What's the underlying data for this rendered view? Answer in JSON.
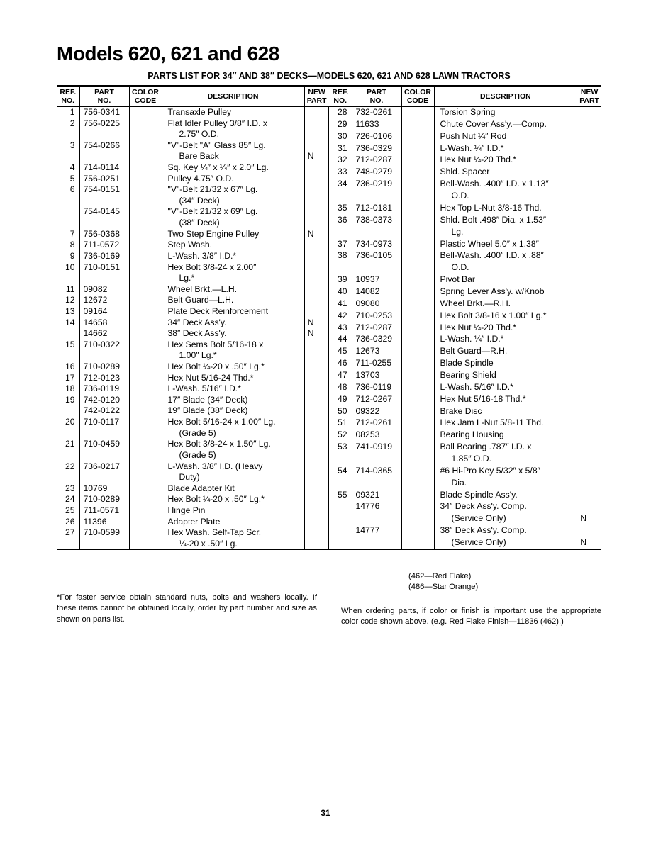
{
  "title": "Models 620, 621 and 628",
  "subtitle": "PARTS LIST FOR 34″ AND 38″ DECKS—MODELS 620, 621 AND 628 LAWN TRACTORS",
  "headers": {
    "ref": "REF.\nNO.",
    "part": "PART\nNO.",
    "color": "COLOR\nCODE",
    "desc": "DESCRIPTION",
    "new": "NEW\nPART"
  },
  "leftRows": [
    {
      "ref": "1",
      "part": "756-0341",
      "color": "",
      "desc": "Transaxle Pulley",
      "new": ""
    },
    {
      "ref": "2",
      "part": "756-0225",
      "color": "",
      "desc": "Flat Idler Pulley 3/8″ I.D. x",
      "new": ""
    },
    {
      "ref": "",
      "part": "",
      "color": "",
      "desc": "  2.75″ O.D.",
      "new": ""
    },
    {
      "ref": "3",
      "part": "754-0266",
      "color": "",
      "desc": "\"V\"-Belt \"A\" Glass 85″ Lg.",
      "new": ""
    },
    {
      "ref": "",
      "part": "",
      "color": "",
      "desc": "  Bare Back",
      "new": "N"
    },
    {
      "ref": "4",
      "part": "714-0114",
      "color": "",
      "desc": "Sq. Key ¼″ x ¼″ x 2.0″ Lg.",
      "new": ""
    },
    {
      "ref": "5",
      "part": "756-0251",
      "color": "",
      "desc": "Pulley 4.75″ O.D.",
      "new": ""
    },
    {
      "ref": "6",
      "part": "754-0151",
      "color": "",
      "desc": "\"V\"-Belt 21/32 x 67″ Lg.",
      "new": ""
    },
    {
      "ref": "",
      "part": "",
      "color": "",
      "desc": "  (34″ Deck)",
      "new": ""
    },
    {
      "ref": "",
      "part": "754-0145",
      "color": "",
      "desc": "\"V\"-Belt 21/32 x 69″ Lg.",
      "new": ""
    },
    {
      "ref": "",
      "part": "",
      "color": "",
      "desc": "  (38″ Deck)",
      "new": ""
    },
    {
      "ref": "7",
      "part": "756-0368",
      "color": "",
      "desc": "Two Step Engine Pulley",
      "new": "N"
    },
    {
      "ref": "8",
      "part": "711-0572",
      "color": "",
      "desc": "Step Wash.",
      "new": ""
    },
    {
      "ref": "9",
      "part": "736-0169",
      "color": "",
      "desc": "L-Wash. 3/8″ I.D.*",
      "new": ""
    },
    {
      "ref": "10",
      "part": "710-0151",
      "color": "",
      "desc": "Hex Bolt 3/8-24 x 2.00″",
      "new": ""
    },
    {
      "ref": "",
      "part": "",
      "color": "",
      "desc": "  Lg.*",
      "new": ""
    },
    {
      "ref": "11",
      "part": "09082",
      "color": "",
      "desc": "Wheel Brkt.—L.H.",
      "new": ""
    },
    {
      "ref": "12",
      "part": "12672",
      "color": "",
      "desc": "Belt Guard—L.H.",
      "new": ""
    },
    {
      "ref": "13",
      "part": "09164",
      "color": "",
      "desc": "Plate Deck Reinforcement",
      "new": ""
    },
    {
      "ref": "14",
      "part": "14658",
      "color": "",
      "desc": "34″ Deck Ass'y.",
      "new": "N"
    },
    {
      "ref": "",
      "part": "14662",
      "color": "",
      "desc": "38″ Deck Ass'y.",
      "new": "N"
    },
    {
      "ref": "15",
      "part": "710-0322",
      "color": "",
      "desc": "Hex Sems Bolt 5/16-18 x",
      "new": ""
    },
    {
      "ref": "",
      "part": "",
      "color": "",
      "desc": "  1.00″ Lg.*",
      "new": ""
    },
    {
      "ref": "16",
      "part": "710-0289",
      "color": "",
      "desc": "Hex Bolt ¼-20 x .50″ Lg.*",
      "new": ""
    },
    {
      "ref": "17",
      "part": "712-0123",
      "color": "",
      "desc": "Hex Nut 5/16-24 Thd.*",
      "new": ""
    },
    {
      "ref": "18",
      "part": "736-0119",
      "color": "",
      "desc": "L-Wash. 5/16″ I.D.*",
      "new": ""
    },
    {
      "ref": "19",
      "part": "742-0120",
      "color": "",
      "desc": "17″ Blade (34″ Deck)",
      "new": ""
    },
    {
      "ref": "",
      "part": "742-0122",
      "color": "",
      "desc": "19″ Blade (38″ Deck)",
      "new": ""
    },
    {
      "ref": "20",
      "part": "710-0117",
      "color": "",
      "desc": "Hex Bolt 5/16-24 x 1.00″ Lg.",
      "new": ""
    },
    {
      "ref": "",
      "part": "",
      "color": "",
      "desc": "  (Grade 5)",
      "new": ""
    },
    {
      "ref": "21",
      "part": "710-0459",
      "color": "",
      "desc": "Hex Bolt 3/8-24 x 1.50″ Lg.",
      "new": ""
    },
    {
      "ref": "",
      "part": "",
      "color": "",
      "desc": "  (Grade 5)",
      "new": ""
    },
    {
      "ref": "22",
      "part": "736-0217",
      "color": "",
      "desc": "L-Wash. 3/8″ I.D. (Heavy",
      "new": ""
    },
    {
      "ref": "",
      "part": "",
      "color": "",
      "desc": "  Duty)",
      "new": ""
    },
    {
      "ref": "23",
      "part": "10769",
      "color": "",
      "desc": "Blade Adapter Kit",
      "new": ""
    },
    {
      "ref": "24",
      "part": "710-0289",
      "color": "",
      "desc": "Hex Bolt ¼-20 x .50″ Lg.*",
      "new": ""
    },
    {
      "ref": "25",
      "part": "711-0571",
      "color": "",
      "desc": "Hinge Pin",
      "new": ""
    },
    {
      "ref": "26",
      "part": "11396",
      "color": "",
      "desc": "Adapter Plate",
      "new": ""
    },
    {
      "ref": "27",
      "part": "710-0599",
      "color": "",
      "desc": "Hex Wash. Self-Tap Scr.",
      "new": ""
    },
    {
      "ref": "",
      "part": "",
      "color": "",
      "desc": "  ¼-20 x .50″ Lg.",
      "new": ""
    }
  ],
  "rightRows": [
    {
      "ref": "28",
      "part": "732-0261",
      "color": "",
      "desc": "Torsion Spring",
      "new": ""
    },
    {
      "ref": "29",
      "part": "11633",
      "color": "",
      "desc": "Chute Cover Ass'y.—Comp.",
      "new": ""
    },
    {
      "ref": "30",
      "part": "726-0106",
      "color": "",
      "desc": "Push Nut ¼″ Rod",
      "new": ""
    },
    {
      "ref": "31",
      "part": "736-0329",
      "color": "",
      "desc": "L-Wash. ¼″ I.D.*",
      "new": ""
    },
    {
      "ref": "32",
      "part": "712-0287",
      "color": "",
      "desc": "Hex Nut ¼-20 Thd.*",
      "new": ""
    },
    {
      "ref": "33",
      "part": "748-0279",
      "color": "",
      "desc": "Shld. Spacer",
      "new": ""
    },
    {
      "ref": "34",
      "part": "736-0219",
      "color": "",
      "desc": "Bell-Wash. .400″ I.D. x 1.13″",
      "new": ""
    },
    {
      "ref": "",
      "part": "",
      "color": "",
      "desc": "  O.D.",
      "new": ""
    },
    {
      "ref": "35",
      "part": "712-0181",
      "color": "",
      "desc": "Hex Top L-Nut 3/8-16 Thd.",
      "new": ""
    },
    {
      "ref": "36",
      "part": "738-0373",
      "color": "",
      "desc": "Shld. Bolt .498″ Dia. x 1.53″",
      "new": ""
    },
    {
      "ref": "",
      "part": "",
      "color": "",
      "desc": "  Lg.",
      "new": ""
    },
    {
      "ref": "37",
      "part": "734-0973",
      "color": "",
      "desc": "Plastic Wheel 5.0″ x 1.38″",
      "new": ""
    },
    {
      "ref": "38",
      "part": "736-0105",
      "color": "",
      "desc": "Bell-Wash. .400″ I.D. x .88″",
      "new": ""
    },
    {
      "ref": "",
      "part": "",
      "color": "",
      "desc": "  O.D.",
      "new": ""
    },
    {
      "ref": "39",
      "part": "10937",
      "color": "",
      "desc": "Pivot Bar",
      "new": ""
    },
    {
      "ref": "40",
      "part": "14082",
      "color": "",
      "desc": "Spring Lever Ass'y. w/Knob",
      "new": ""
    },
    {
      "ref": "41",
      "part": "09080",
      "color": "",
      "desc": "Wheel Brkt.—R.H.",
      "new": ""
    },
    {
      "ref": "42",
      "part": "710-0253",
      "color": "",
      "desc": "Hex Bolt 3/8-16 x 1.00″ Lg.*",
      "new": ""
    },
    {
      "ref": "43",
      "part": "712-0287",
      "color": "",
      "desc": "Hex Nut ¼-20 Thd.*",
      "new": ""
    },
    {
      "ref": "44",
      "part": "736-0329",
      "color": "",
      "desc": "L-Wash. ¼″ I.D.*",
      "new": ""
    },
    {
      "ref": "45",
      "part": "12673",
      "color": "",
      "desc": "Belt Guard—R.H.",
      "new": ""
    },
    {
      "ref": "46",
      "part": "711-0255",
      "color": "",
      "desc": "Blade Spindle",
      "new": ""
    },
    {
      "ref": "47",
      "part": "13703",
      "color": "",
      "desc": "Bearing Shield",
      "new": ""
    },
    {
      "ref": "48",
      "part": "736-0119",
      "color": "",
      "desc": "L-Wash. 5/16″ I.D.*",
      "new": ""
    },
    {
      "ref": "49",
      "part": "712-0267",
      "color": "",
      "desc": "Hex Nut 5/16-18 Thd.*",
      "new": ""
    },
    {
      "ref": "50",
      "part": "09322",
      "color": "",
      "desc": "Brake Disc",
      "new": ""
    },
    {
      "ref": "51",
      "part": "712-0261",
      "color": "",
      "desc": "Hex Jam L-Nut 5/8-11 Thd.",
      "new": ""
    },
    {
      "ref": "52",
      "part": "08253",
      "color": "",
      "desc": "Bearing Housing",
      "new": ""
    },
    {
      "ref": "53",
      "part": "741-0919",
      "color": "",
      "desc": "Ball Bearing .787″ I.D. x",
      "new": ""
    },
    {
      "ref": "",
      "part": "",
      "color": "",
      "desc": "  1.85″ O.D.",
      "new": ""
    },
    {
      "ref": "54",
      "part": "714-0365",
      "color": "",
      "desc": "#6 Hi-Pro Key 5/32″ x 5/8″",
      "new": ""
    },
    {
      "ref": "",
      "part": "",
      "color": "",
      "desc": "  Dia.",
      "new": ""
    },
    {
      "ref": "55",
      "part": "09321",
      "color": "",
      "desc": "Blade Spindle Ass'y.",
      "new": ""
    },
    {
      "ref": "",
      "part": "14776",
      "color": "",
      "desc": "34″ Deck Ass'y. Comp.",
      "new": ""
    },
    {
      "ref": "",
      "part": "",
      "color": "",
      "desc": "  (Service Only)",
      "new": "N"
    },
    {
      "ref": "",
      "part": "14777",
      "color": "",
      "desc": "38″ Deck Ass'y. Comp.",
      "new": ""
    },
    {
      "ref": "",
      "part": "",
      "color": "",
      "desc": "  (Service Only)",
      "new": "N"
    }
  ],
  "colorCodes": [
    "(462—Red Flake)",
    "(486—Star Orange)"
  ],
  "footnoteLeft": "*For faster service obtain standard nuts, bolts and washers locally. If these items cannot be obtained locally, order by part number and size as shown on parts list.",
  "footnoteRight": "When ordering parts, if color or finish is important use the appropriate color code shown above. (e.g. Red Flake Finish—11836 (462).)",
  "pageNumber": "31"
}
